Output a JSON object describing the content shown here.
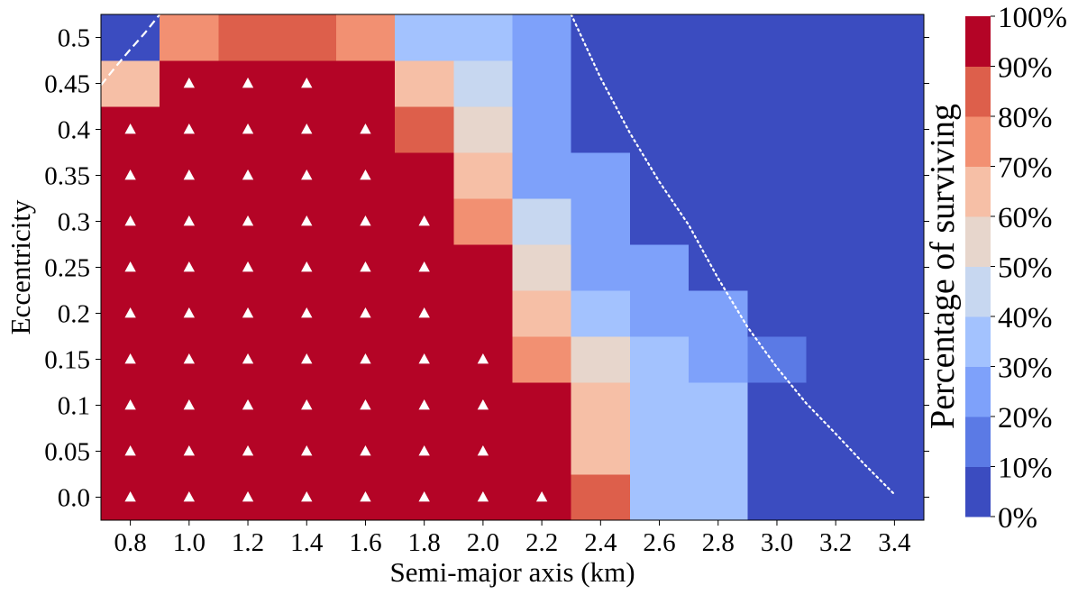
{
  "chart_data": {
    "type": "heatmap",
    "xlabel": "Semi-major axis (km)",
    "ylabel": "Eccentricity",
    "x": [
      0.8,
      1.0,
      1.2,
      1.4,
      1.6,
      1.8,
      2.0,
      2.2,
      2.4,
      2.6,
      2.8,
      3.0,
      3.2,
      3.4
    ],
    "x_tick_labels": [
      "0.8",
      "1.0",
      "1.2",
      "1.4",
      "1.6",
      "1.8",
      "2.0",
      "2.2",
      "2.4",
      "2.6",
      "2.8",
      "3.0",
      "3.2",
      "3.4"
    ],
    "y": [
      0.0,
      0.05,
      0.1,
      0.15,
      0.2,
      0.25,
      0.3,
      0.35,
      0.4,
      0.45,
      0.5
    ],
    "y_tick_labels": [
      "0.0",
      "0.05",
      "0.1",
      "0.15",
      "0.2",
      "0.25",
      "0.3",
      "0.35",
      "0.4",
      "0.45",
      "0.5"
    ],
    "xlim": [
      0.7,
      3.5
    ],
    "ylim": [
      -0.025,
      0.525
    ],
    "grid_step_x": 0.2,
    "grid_step_y": 0.05,
    "values_percent": [
      [
        100,
        100,
        100,
        100,
        100,
        100,
        100,
        100,
        85,
        35,
        35,
        5,
        5,
        5
      ],
      [
        100,
        100,
        100,
        100,
        100,
        100,
        100,
        100,
        65,
        35,
        35,
        5,
        5,
        5
      ],
      [
        100,
        100,
        100,
        100,
        100,
        100,
        100,
        100,
        65,
        35,
        35,
        5,
        5,
        5
      ],
      [
        100,
        100,
        100,
        100,
        100,
        100,
        100,
        75,
        55,
        35,
        25,
        15,
        5,
        5
      ],
      [
        100,
        100,
        100,
        100,
        100,
        100,
        100,
        65,
        35,
        25,
        25,
        5,
        5,
        5
      ],
      [
        100,
        100,
        100,
        100,
        100,
        100,
        100,
        55,
        25,
        25,
        5,
        5,
        5,
        5
      ],
      [
        100,
        100,
        100,
        100,
        100,
        100,
        75,
        45,
        25,
        5,
        5,
        5,
        5,
        5
      ],
      [
        100,
        100,
        100,
        100,
        100,
        100,
        65,
        25,
        25,
        5,
        5,
        5,
        5,
        5
      ],
      [
        100,
        100,
        100,
        100,
        100,
        85,
        55,
        25,
        5,
        5,
        5,
        5,
        5,
        5
      ],
      [
        65,
        100,
        100,
        100,
        100,
        65,
        45,
        25,
        5,
        5,
        5,
        5,
        5,
        5
      ],
      [
        5,
        75,
        85,
        85,
        75,
        35,
        35,
        25,
        5,
        5,
        5,
        5,
        5,
        5
      ]
    ],
    "markers": {
      "symbol": "triangle-up",
      "color": "#ffffff",
      "points": [
        [
          0.8,
          0.0
        ],
        [
          1.0,
          0.0
        ],
        [
          1.2,
          0.0
        ],
        [
          1.4,
          0.0
        ],
        [
          1.6,
          0.0
        ],
        [
          1.8,
          0.0
        ],
        [
          2.0,
          0.0
        ],
        [
          2.2,
          0.0
        ],
        [
          0.8,
          0.05
        ],
        [
          1.0,
          0.05
        ],
        [
          1.2,
          0.05
        ],
        [
          1.4,
          0.05
        ],
        [
          1.6,
          0.05
        ],
        [
          1.8,
          0.05
        ],
        [
          2.0,
          0.05
        ],
        [
          0.8,
          0.1
        ],
        [
          1.0,
          0.1
        ],
        [
          1.2,
          0.1
        ],
        [
          1.4,
          0.1
        ],
        [
          1.6,
          0.1
        ],
        [
          1.8,
          0.1
        ],
        [
          2.0,
          0.1
        ],
        [
          0.8,
          0.15
        ],
        [
          1.0,
          0.15
        ],
        [
          1.2,
          0.15
        ],
        [
          1.4,
          0.15
        ],
        [
          1.6,
          0.15
        ],
        [
          1.8,
          0.15
        ],
        [
          2.0,
          0.15
        ],
        [
          0.8,
          0.2
        ],
        [
          1.0,
          0.2
        ],
        [
          1.2,
          0.2
        ],
        [
          1.4,
          0.2
        ],
        [
          1.6,
          0.2
        ],
        [
          1.8,
          0.2
        ],
        [
          0.8,
          0.25
        ],
        [
          1.0,
          0.25
        ],
        [
          1.2,
          0.25
        ],
        [
          1.4,
          0.25
        ],
        [
          1.6,
          0.25
        ],
        [
          1.8,
          0.25
        ],
        [
          0.8,
          0.3
        ],
        [
          1.0,
          0.3
        ],
        [
          1.2,
          0.3
        ],
        [
          1.4,
          0.3
        ],
        [
          1.6,
          0.3
        ],
        [
          1.8,
          0.3
        ],
        [
          0.8,
          0.35
        ],
        [
          1.0,
          0.35
        ],
        [
          1.2,
          0.35
        ],
        [
          1.4,
          0.35
        ],
        [
          1.6,
          0.35
        ],
        [
          0.8,
          0.4
        ],
        [
          1.0,
          0.4
        ],
        [
          1.2,
          0.4
        ],
        [
          1.4,
          0.4
        ],
        [
          1.6,
          0.4
        ],
        [
          1.0,
          0.45
        ],
        [
          1.2,
          0.45
        ],
        [
          1.4,
          0.45
        ]
      ]
    },
    "curves": [
      {
        "name": "dashed-boundary",
        "style": "dashed",
        "color": "#ffffff",
        "points": [
          [
            0.7,
            0.448
          ],
          [
            0.75,
            0.468
          ],
          [
            0.8,
            0.487
          ],
          [
            0.85,
            0.505
          ],
          [
            0.9,
            0.525
          ]
        ]
      },
      {
        "name": "dotted-boundary",
        "style": "dotted",
        "color": "#ffffff",
        "points": [
          [
            2.3,
            0.525
          ],
          [
            2.4,
            0.456
          ],
          [
            2.5,
            0.396
          ],
          [
            2.6,
            0.343
          ],
          [
            2.7,
            0.296
          ],
          [
            2.8,
            0.238
          ],
          [
            2.9,
            0.185
          ],
          [
            3.0,
            0.141
          ],
          [
            3.1,
            0.102
          ],
          [
            3.2,
            0.069
          ],
          [
            3.3,
            0.035
          ],
          [
            3.4,
            0.003
          ]
        ]
      }
    ],
    "colorbar": {
      "label": "Percentage of surviving",
      "tick_labels": [
        "0%",
        "10%",
        "20%",
        "30%",
        "40%",
        "50%",
        "60%",
        "70%",
        "80%",
        "90%",
        "100%"
      ],
      "bins": [
        {
          "range": [
            0,
            10
          ],
          "color": "#3b4cc0"
        },
        {
          "range": [
            10,
            20
          ],
          "color": "#5b7ae5"
        },
        {
          "range": [
            20,
            30
          ],
          "color": "#7ea1fa"
        },
        {
          "range": [
            30,
            40
          ],
          "color": "#a3c2fe"
        },
        {
          "range": [
            40,
            50
          ],
          "color": "#c7d7f0"
        },
        {
          "range": [
            50,
            60
          ],
          "color": "#e7d6cc"
        },
        {
          "range": [
            60,
            70
          ],
          "color": "#f6bfa6"
        },
        {
          "range": [
            70,
            80
          ],
          "color": "#f29072"
        },
        {
          "range": [
            80,
            90
          ],
          "color": "#dd5f4b"
        },
        {
          "range": [
            90,
            100
          ],
          "color": "#b40426"
        }
      ]
    }
  }
}
